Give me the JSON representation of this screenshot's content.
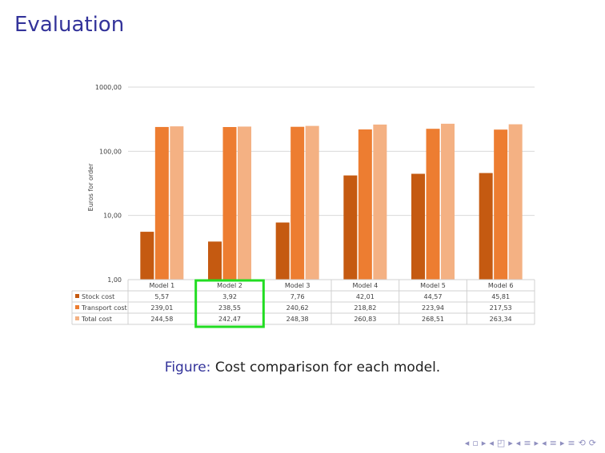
{
  "slide": {
    "title": "Evaluation",
    "caption_prefix": "Figure:",
    "caption_text": "Cost comparison for each model.",
    "nav_symbols": [
      "◂",
      "▫",
      "▸",
      "◂",
      "◰",
      "▸",
      "◂",
      "≡",
      "▸",
      "◂",
      "≡",
      "▸",
      "≡",
      "⟲",
      "⟳"
    ]
  },
  "chart_data": {
    "type": "bar",
    "scale": "log",
    "ylabel": "Euros for order",
    "ylim": [
      1,
      1000
    ],
    "y_ticks": [
      1,
      10,
      100,
      1000
    ],
    "y_tick_labels": [
      "1,00",
      "10,00",
      "100,00",
      "1000,00"
    ],
    "grid": true,
    "categories": [
      "Model 1",
      "Model 2",
      "Model 3",
      "Model 4",
      "Model 5",
      "Model 6"
    ],
    "series": [
      {
        "name": "Stock cost",
        "color": "#c55a11",
        "values": [
          5.57,
          3.92,
          7.76,
          42.01,
          44.57,
          45.81
        ],
        "labels": [
          "5,57",
          "3,92",
          "7,76",
          "42,01",
          "44,57",
          "45,81"
        ]
      },
      {
        "name": "Transport cost",
        "color": "#ed7d31",
        "values": [
          239.01,
          238.55,
          240.62,
          218.82,
          223.94,
          217.53
        ],
        "labels": [
          "239,01",
          "238,55",
          "240,62",
          "218,82",
          "223,94",
          "217,53"
        ]
      },
      {
        "name": "Total cost",
        "color": "#f4b183",
        "values": [
          244.58,
          242.47,
          248.38,
          260.83,
          268.51,
          263.34
        ],
        "labels": [
          "244,58",
          "242,47",
          "248,38",
          "260,83",
          "268,51",
          "263,34"
        ]
      }
    ],
    "highlight": {
      "category_index": 1,
      "color": "#22dd22"
    }
  }
}
